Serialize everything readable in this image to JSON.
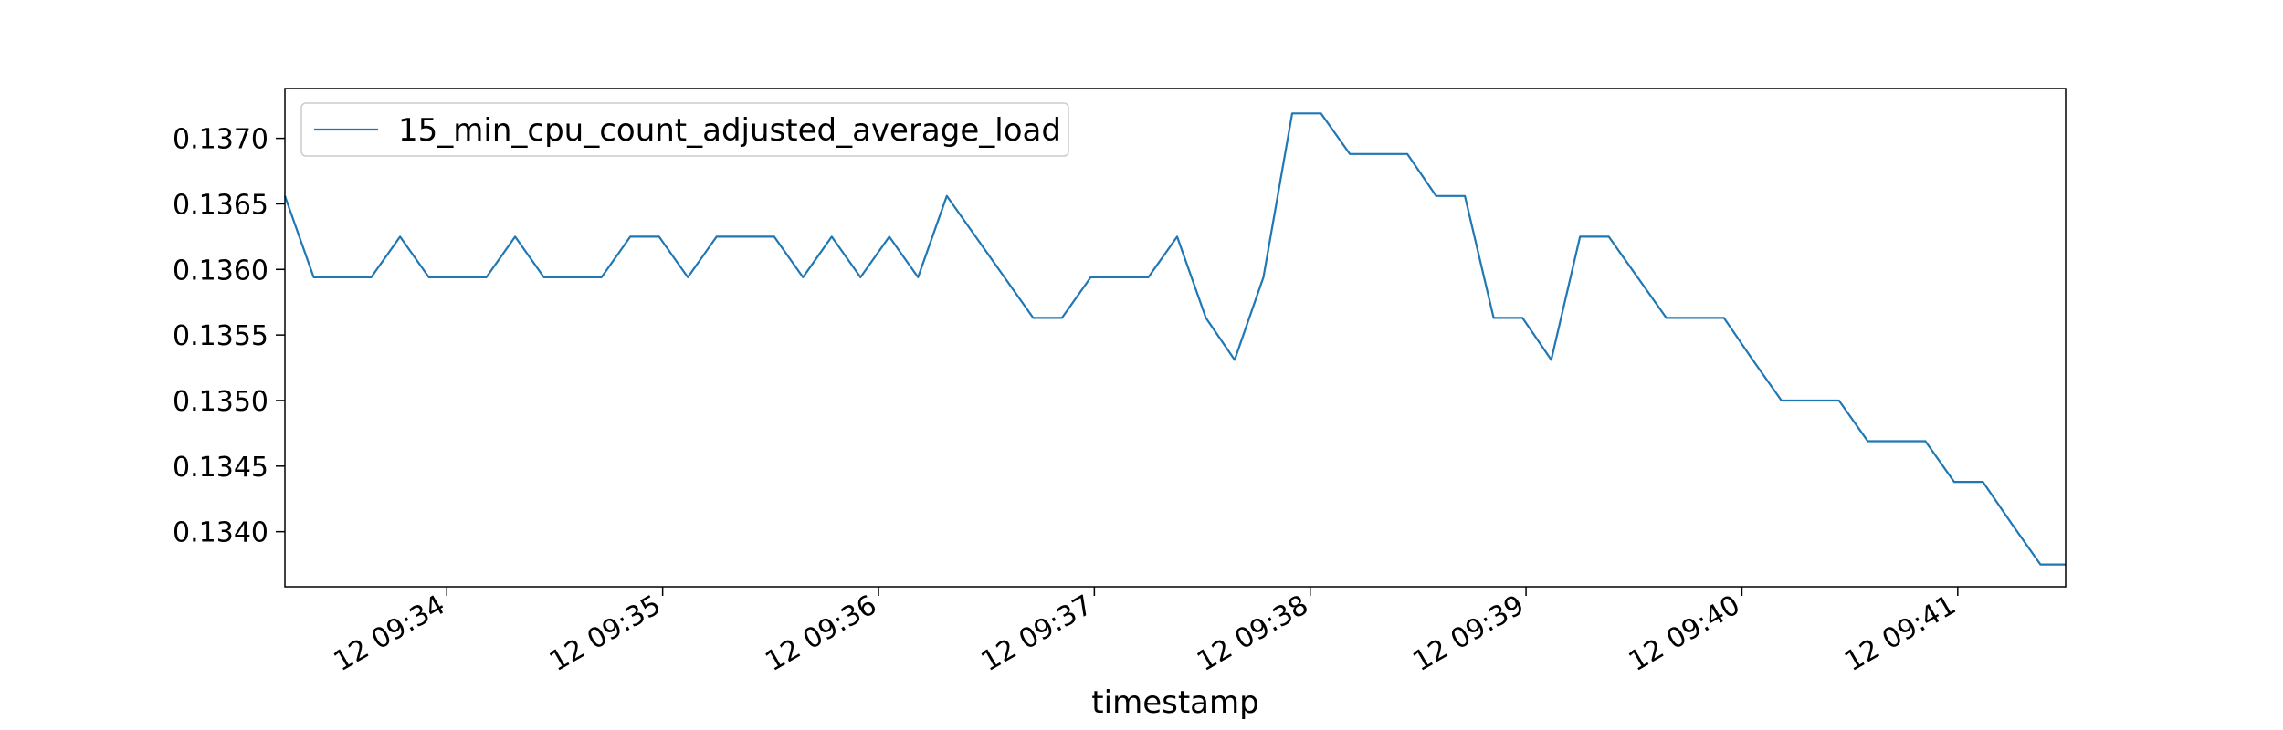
{
  "chart_data": {
    "type": "line",
    "title": "",
    "xlabel": "timestamp",
    "ylabel": "",
    "x_ticks": [
      "12 09:34",
      "12 09:35",
      "12 09:36",
      "12 09:37",
      "12 09:38",
      "12 09:39",
      "12 09:40",
      "12 09:41"
    ],
    "y_ticks": [
      "0.1340",
      "0.1345",
      "0.1350",
      "0.1355",
      "0.1360",
      "0.1365",
      "0.1370"
    ],
    "xlim": [
      "09:33:15",
      "09:41:30"
    ],
    "ylim": [
      0.13358,
      0.13738
    ],
    "legend_position": "upper-left",
    "grid": false,
    "series": [
      {
        "name": "15_min_cpu_count_adjusted_average_load",
        "color": "#1f77b4",
        "x": [
          "09:33:15",
          "09:33:23",
          "09:33:31",
          "09:33:39",
          "09:33:47",
          "09:33:55",
          "09:34:03",
          "09:34:11",
          "09:34:19",
          "09:34:27",
          "09:34:35",
          "09:34:43",
          "09:34:51",
          "09:34:59",
          "09:35:07",
          "09:35:15",
          "09:35:23",
          "09:35:31",
          "09:35:39",
          "09:35:47",
          "09:35:55",
          "09:36:03",
          "09:36:11",
          "09:36:19",
          "09:36:27",
          "09:36:35",
          "09:36:43",
          "09:36:51",
          "09:36:59",
          "09:37:07",
          "09:37:15",
          "09:37:23",
          "09:37:31",
          "09:37:39",
          "09:37:47",
          "09:37:55",
          "09:38:03",
          "09:38:11",
          "09:38:19",
          "09:38:27",
          "09:38:35",
          "09:38:43",
          "09:38:51",
          "09:38:59",
          "09:39:07",
          "09:39:15",
          "09:39:23",
          "09:39:31",
          "09:39:39",
          "09:39:47",
          "09:39:55",
          "09:40:03",
          "09:40:11",
          "09:40:19",
          "09:40:27",
          "09:40:35",
          "09:40:43",
          "09:40:51",
          "09:40:59",
          "09:41:07",
          "09:41:15",
          "09:41:23",
          "09:41:30"
        ],
        "y": [
          0.13656,
          0.13594,
          0.13594,
          0.13594,
          0.13625,
          0.13594,
          0.13594,
          0.13594,
          0.13625,
          0.13594,
          0.13594,
          0.13594,
          0.13625,
          0.13625,
          0.13594,
          0.13625,
          0.13625,
          0.13625,
          0.13594,
          0.13625,
          0.13594,
          0.13625,
          0.13594,
          0.13656,
          0.13625,
          0.13594,
          0.13563,
          0.13563,
          0.13594,
          0.13594,
          0.13594,
          0.13625,
          0.13563,
          0.13531,
          0.13594,
          0.13719,
          0.13719,
          0.13688,
          0.13688,
          0.13688,
          0.13656,
          0.13656,
          0.13563,
          0.13563,
          0.13531,
          0.13625,
          0.13625,
          0.13594,
          0.13563,
          0.13563,
          0.13563,
          0.13531,
          0.135,
          0.135,
          0.135,
          0.13469,
          0.13469,
          0.13469,
          0.13438,
          0.13438,
          0.13406,
          0.13375,
          0.13375
        ]
      }
    ]
  }
}
